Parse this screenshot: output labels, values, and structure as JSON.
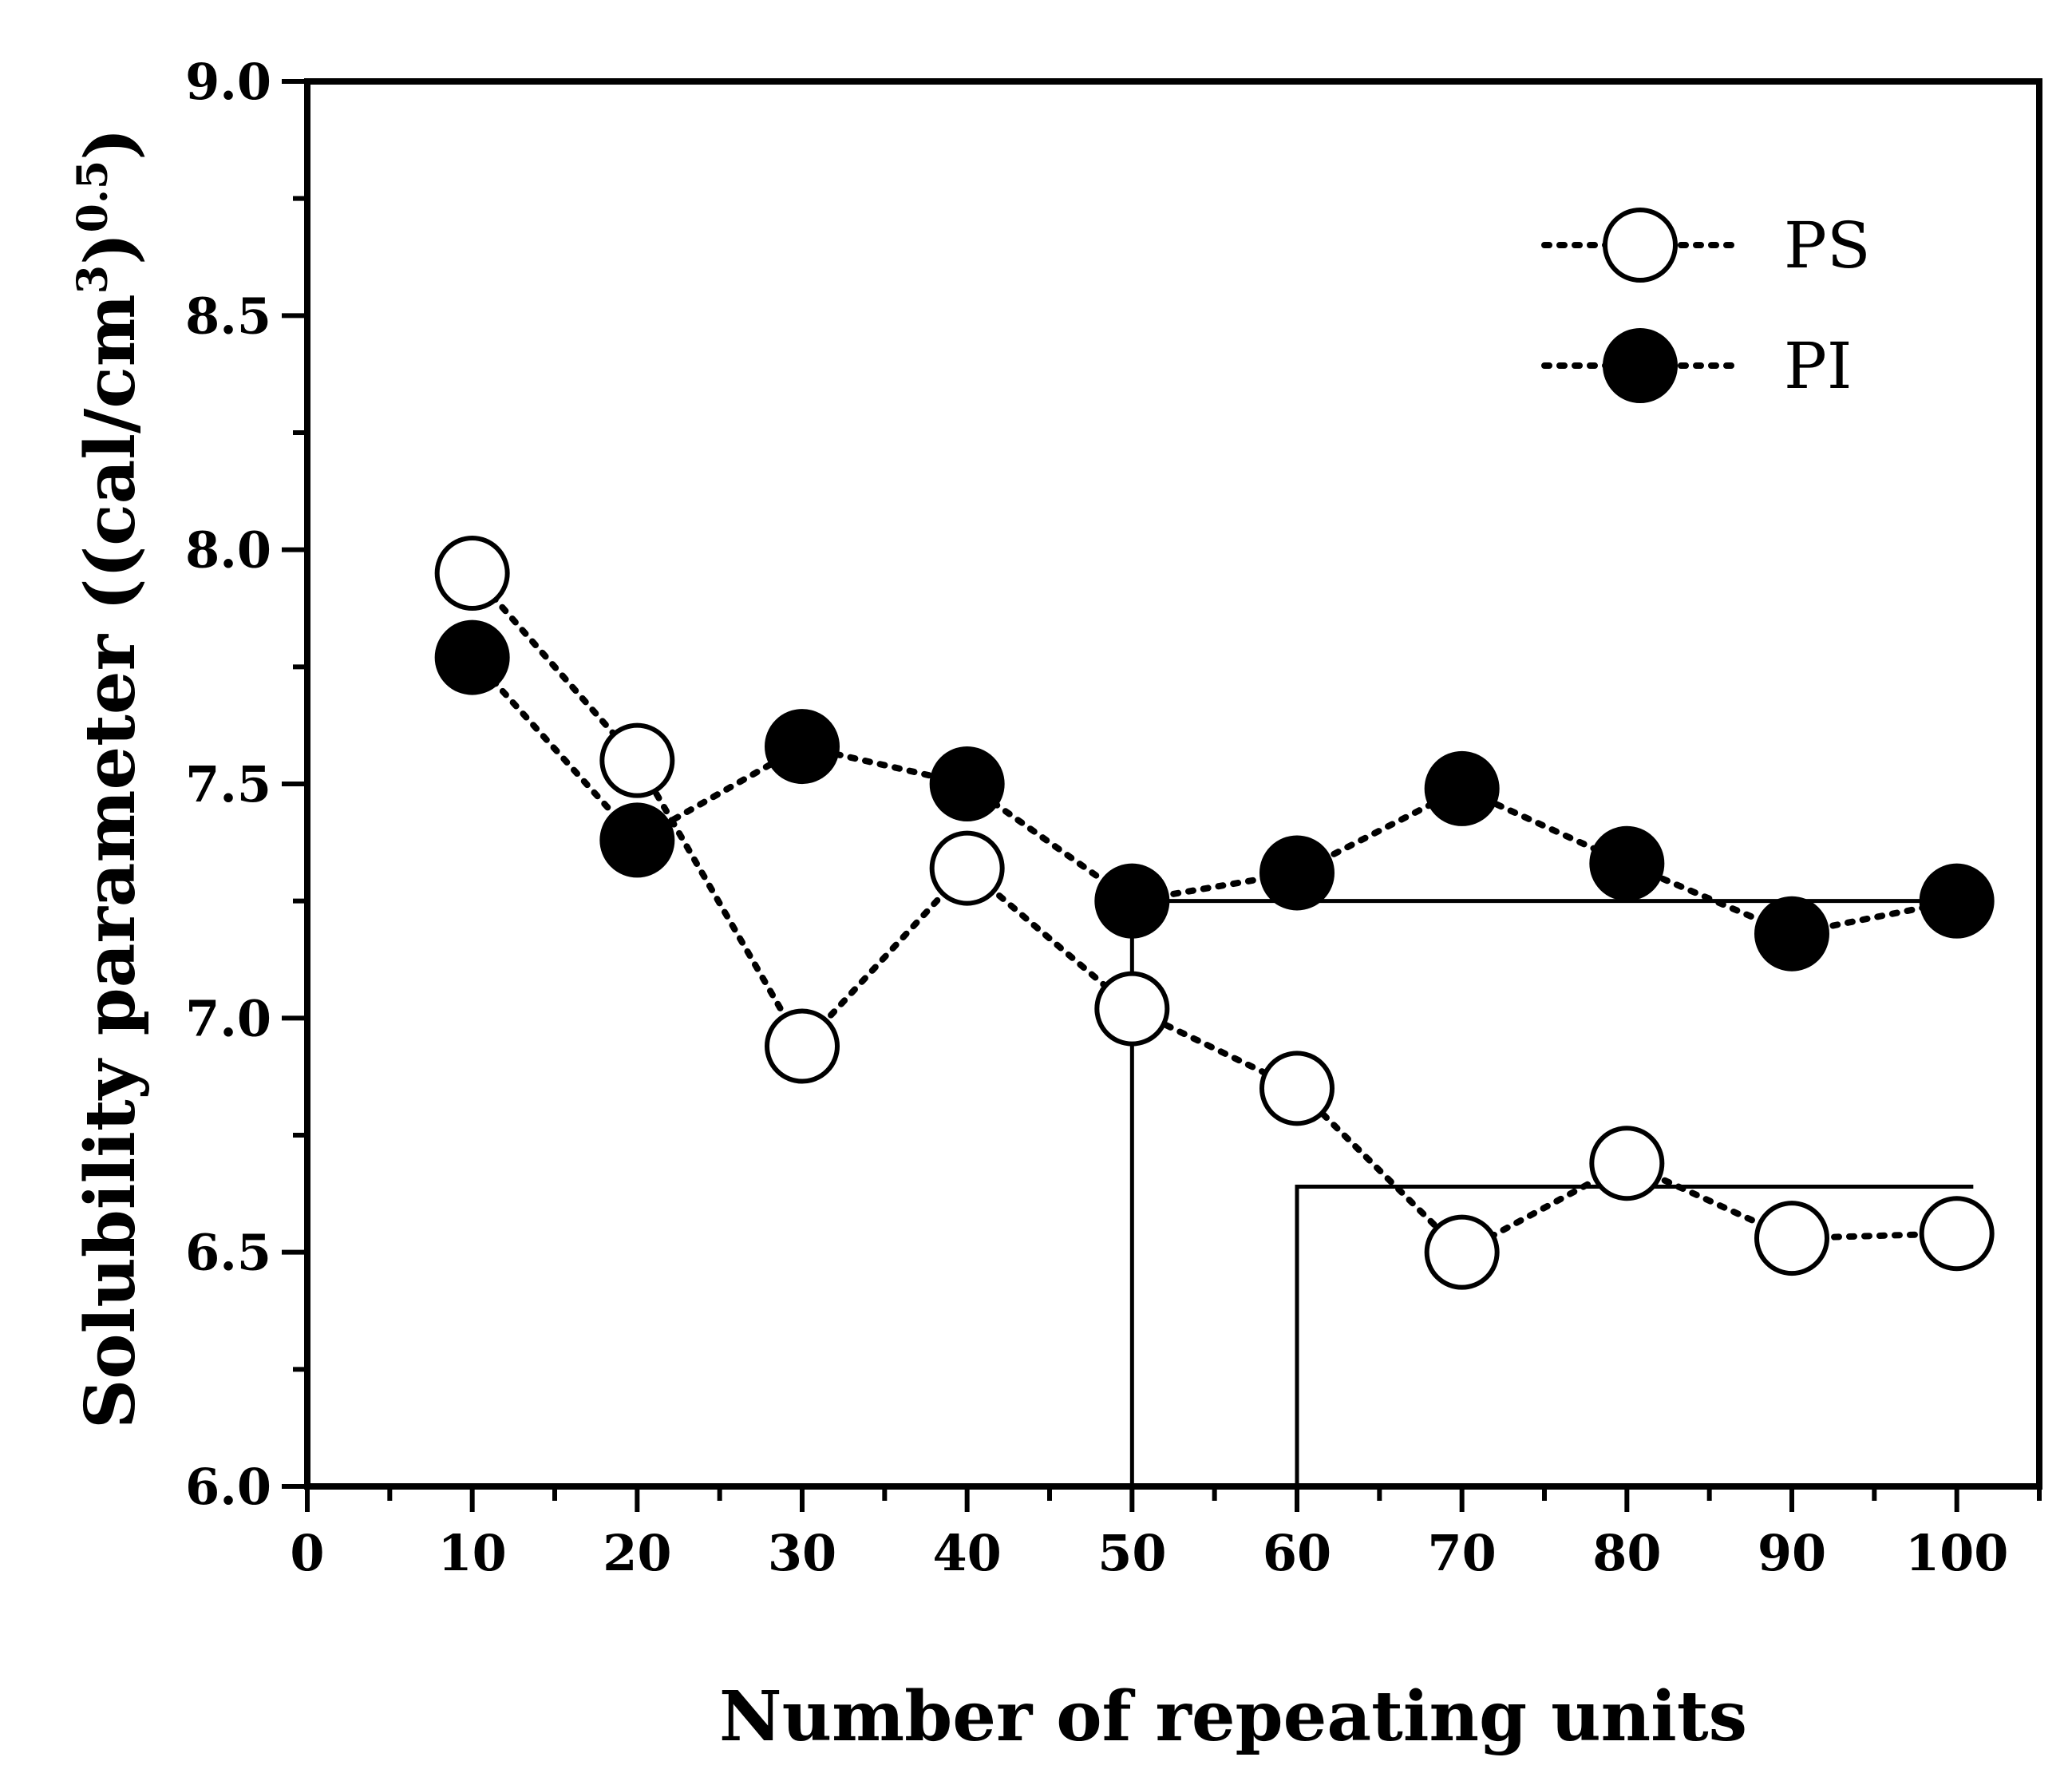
{
  "chart_data": {
    "type": "scatter",
    "xlabel": "Number of repeating units",
    "ylabel": {
      "main": "Solubility parameter ((cal/cm",
      "sup1": "3",
      "mid": ")",
      "sup2": "0.5",
      "end": ")"
    },
    "xlim": [
      0,
      105
    ],
    "ylim": [
      6.0,
      9.0
    ],
    "x_ticks": [
      "0",
      "10",
      "20",
      "30",
      "40",
      "50",
      "60",
      "70",
      "80",
      "90",
      "100"
    ],
    "x_tick_values": [
      0,
      10,
      20,
      30,
      40,
      50,
      60,
      70,
      80,
      90,
      100
    ],
    "y_ticks": [
      "6.0",
      "6.5",
      "7.0",
      "7.5",
      "8.0",
      "8.5",
      "9.0"
    ],
    "y_tick_values": [
      6.0,
      6.5,
      7.0,
      7.5,
      8.0,
      8.5,
      9.0
    ],
    "legend_position": "top-right",
    "series": [
      {
        "name": "PS",
        "marker": "open-circle",
        "x": [
          10,
          20,
          30,
          40,
          50,
          60,
          70,
          80,
          90,
          100
        ],
        "y": [
          7.95,
          7.55,
          6.94,
          7.32,
          7.02,
          6.85,
          6.5,
          6.69,
          6.53,
          6.54
        ]
      },
      {
        "name": "PI",
        "marker": "filled-circle",
        "x": [
          10,
          20,
          30,
          40,
          50,
          60,
          70,
          80,
          90,
          100
        ],
        "y": [
          7.77,
          7.38,
          7.58,
          7.5,
          7.25,
          7.31,
          7.49,
          7.33,
          7.18,
          7.25
        ]
      }
    ],
    "reference_lines": [
      {
        "x_start": 50,
        "x_end": 100,
        "y": 7.25
      },
      {
        "x_start": 60,
        "x_end": 101,
        "y": 6.64
      }
    ],
    "colors": {
      "line": "#000000",
      "open_fill": "#ffffff",
      "filled_fill": "#000000"
    }
  }
}
